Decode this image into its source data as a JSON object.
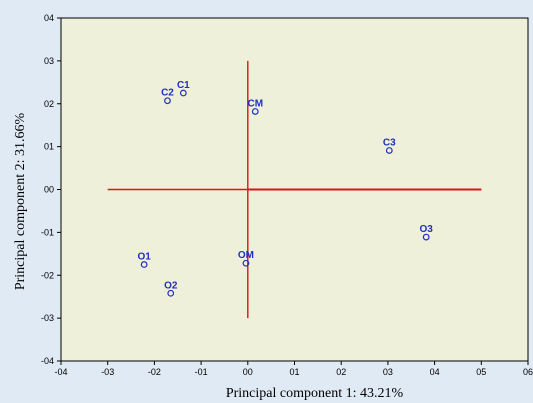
{
  "chart_data": {
    "type": "scatter",
    "title": "",
    "xlabel": "Principal component 1: 43.21%",
    "ylabel": "Principal component 2: 31.66%",
    "xlim": [
      -0.4,
      0.6
    ],
    "ylim": [
      -0.4,
      0.4
    ],
    "x_ticks": [
      -0.4,
      -0.3,
      -0.2,
      -0.1,
      0.0,
      0.1,
      0.2,
      0.3,
      0.4,
      0.5,
      0.6
    ],
    "x_tick_labels": [
      "-04",
      "-03",
      "-02",
      "-01",
      "00",
      "01",
      "02",
      "03",
      "04",
      "05",
      "06"
    ],
    "y_ticks": [
      -0.4,
      -0.3,
      -0.2,
      -0.1,
      0.0,
      0.1,
      0.2,
      0.3,
      0.4
    ],
    "y_tick_labels": [
      "-04",
      "-03",
      "-02",
      "-01",
      "00",
      "01",
      "02",
      "03",
      "04"
    ],
    "grid": false,
    "points": [
      {
        "label": "C1",
        "x": -0.138,
        "y": 0.225
      },
      {
        "label": "C2",
        "x": -0.172,
        "y": 0.207
      },
      {
        "label": "CM",
        "x": 0.016,
        "y": 0.182
      },
      {
        "label": "C3",
        "x": 0.303,
        "y": 0.091
      },
      {
        "label": "O3",
        "x": 0.382,
        "y": -0.111
      },
      {
        "label": "O1",
        "x": -0.222,
        "y": -0.175
      },
      {
        "label": "OM",
        "x": -0.004,
        "y": -0.172
      },
      {
        "label": "O2",
        "x": -0.165,
        "y": -0.242
      }
    ],
    "reference_lines": [
      {
        "orientation": "horizontal",
        "y": 0.0,
        "x_from": -0.3,
        "x_to": 0.5
      },
      {
        "orientation": "vertical",
        "x": 0.0,
        "y_from": -0.3,
        "y_to": 0.3
      }
    ],
    "colors": {
      "figure_background": "#dfeaf5",
      "plot_background": "#eef0d9",
      "reference_line": "#d9141a",
      "points": "#1f2fbf"
    }
  }
}
